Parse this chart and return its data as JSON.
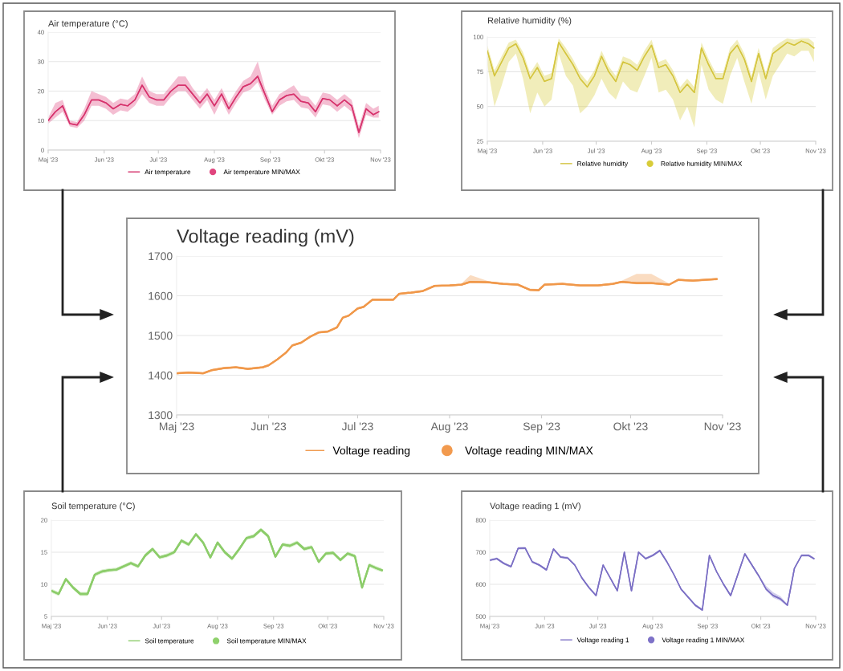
{
  "chart_data": [
    {
      "type": "line",
      "title": "Air temperature (°C)",
      "grid": "y",
      "legend": "bottom",
      "xlim": [
        "2023-05-01",
        "2023-11-01"
      ],
      "xticks": [
        {
          "value": "2023-05-01",
          "label": "Maj '23"
        },
        {
          "value": "2023-06-01",
          "label": "Jun '23"
        },
        {
          "value": "2023-07-01",
          "label": "Jul '23"
        },
        {
          "value": "2023-08-01",
          "label": "Aug '23"
        },
        {
          "value": "2023-09-01",
          "label": "Sep '23"
        },
        {
          "value": "2023-10-01",
          "label": "Okt '23"
        },
        {
          "value": "2023-11-01",
          "label": "Nov '23"
        }
      ],
      "ylim": [
        0,
        40
      ],
      "yticks": [
        0,
        10,
        20,
        30,
        40
      ],
      "x": [
        "2023-05-01",
        "2023-05-05",
        "2023-05-09",
        "2023-05-13",
        "2023-05-17",
        "2023-05-21",
        "2023-05-25",
        "2023-05-29",
        "2023-06-02",
        "2023-06-06",
        "2023-06-10",
        "2023-06-14",
        "2023-06-18",
        "2023-06-22",
        "2023-06-26",
        "2023-06-30",
        "2023-07-04",
        "2023-07-08",
        "2023-07-12",
        "2023-07-16",
        "2023-07-20",
        "2023-07-24",
        "2023-07-28",
        "2023-08-01",
        "2023-08-05",
        "2023-08-09",
        "2023-08-13",
        "2023-08-17",
        "2023-08-21",
        "2023-08-25",
        "2023-08-29",
        "2023-09-02",
        "2023-09-06",
        "2023-09-10",
        "2023-09-14",
        "2023-09-18",
        "2023-09-22",
        "2023-09-26",
        "2023-09-30",
        "2023-10-04",
        "2023-10-08",
        "2023-10-12",
        "2023-10-16",
        "2023-10-20",
        "2023-10-24",
        "2023-10-28",
        "2023-10-31"
      ],
      "series": [
        {
          "name": "Air temperature",
          "type": "line",
          "color": "#d6336c",
          "values": [
            10,
            13,
            15,
            9,
            8.5,
            12,
            17,
            17,
            16,
            14,
            15.5,
            15,
            17,
            22,
            18,
            17,
            17,
            20,
            22,
            22,
            19,
            16,
            19,
            15,
            19,
            14,
            18,
            21.5,
            22.5,
            25,
            19,
            13,
            17,
            18.5,
            19,
            16.5,
            16,
            13,
            17.5,
            17,
            15,
            17,
            15,
            6,
            14,
            12,
            13
          ]
        },
        {
          "name": "Air temperature MIN/MAX",
          "type": "line",
          "color": "#e0457e",
          "values": [
            10,
            13,
            15,
            9,
            8.5,
            12,
            17,
            17,
            16,
            14,
            15.5,
            15,
            17,
            22,
            18,
            17,
            17,
            20,
            22,
            22,
            19,
            16,
            19,
            15,
            19,
            14,
            18,
            21.5,
            22.5,
            25,
            19,
            13,
            17,
            18.5,
            19,
            16.5,
            16,
            13,
            17.5,
            17,
            15,
            17,
            15,
            6,
            14,
            12,
            13
          ],
          "upper": [
            11,
            16,
            17,
            10,
            9.5,
            14,
            20,
            19,
            18,
            16,
            17.5,
            17,
            19,
            25,
            20,
            19,
            19,
            22,
            25,
            25,
            21,
            18,
            21,
            17,
            21,
            16,
            20,
            23.5,
            25,
            30,
            21,
            15,
            19,
            20.5,
            22,
            18.5,
            18,
            15,
            19.5,
            19,
            17,
            19,
            17,
            8,
            16,
            14,
            15
          ],
          "lower": [
            9,
            11,
            13,
            8,
            7.5,
            10,
            15,
            15,
            14,
            12,
            13.5,
            13,
            15,
            19,
            16,
            15,
            15,
            18,
            20,
            20,
            17,
            14,
            17,
            12,
            17,
            12,
            16,
            19.5,
            20.5,
            23,
            17,
            12,
            15,
            16.5,
            17,
            14.5,
            14,
            11,
            15.5,
            15,
            13,
            15,
            13,
            4,
            12,
            11,
            11
          ]
        }
      ]
    },
    {
      "type": "line",
      "title": "Relative humidity (%)",
      "grid": "y",
      "legend": "bottom",
      "xlim": [
        "2023-05-01",
        "2023-11-01"
      ],
      "xticks": [
        {
          "value": "2023-05-01",
          "label": "Maj '23"
        },
        {
          "value": "2023-06-01",
          "label": "Jun '23"
        },
        {
          "value": "2023-07-01",
          "label": "Jul '23"
        },
        {
          "value": "2023-08-01",
          "label": "Aug '23"
        },
        {
          "value": "2023-09-01",
          "label": "Sep '23"
        },
        {
          "value": "2023-10-01",
          "label": "Okt '23"
        },
        {
          "value": "2023-11-01",
          "label": "Nov '23"
        }
      ],
      "ylim": [
        25,
        100
      ],
      "yticks": [
        25,
        50,
        75,
        100
      ],
      "x": [
        "2023-05-01",
        "2023-05-05",
        "2023-05-09",
        "2023-05-13",
        "2023-05-17",
        "2023-05-21",
        "2023-05-25",
        "2023-05-29",
        "2023-06-02",
        "2023-06-06",
        "2023-06-10",
        "2023-06-14",
        "2023-06-18",
        "2023-06-22",
        "2023-06-26",
        "2023-06-30",
        "2023-07-04",
        "2023-07-08",
        "2023-07-12",
        "2023-07-16",
        "2023-07-20",
        "2023-07-24",
        "2023-07-28",
        "2023-08-01",
        "2023-08-05",
        "2023-08-09",
        "2023-08-13",
        "2023-08-17",
        "2023-08-21",
        "2023-08-25",
        "2023-08-29",
        "2023-09-02",
        "2023-09-06",
        "2023-09-10",
        "2023-09-14",
        "2023-09-18",
        "2023-09-22",
        "2023-09-26",
        "2023-09-30",
        "2023-10-04",
        "2023-10-08",
        "2023-10-12",
        "2023-10-16",
        "2023-10-20",
        "2023-10-24",
        "2023-10-28",
        "2023-10-31"
      ],
      "series": [
        {
          "name": "Relative humidity",
          "type": "line",
          "color": "#d4c441",
          "values": [
            90,
            72,
            82,
            92,
            95,
            85,
            70,
            78,
            68,
            70,
            96,
            88,
            80,
            70,
            64,
            72,
            86,
            75,
            68,
            82,
            80,
            76,
            86,
            94,
            78,
            80,
            72,
            60,
            66,
            60,
            92,
            80,
            70,
            70,
            88,
            94,
            84,
            68,
            88,
            70,
            88,
            92,
            96,
            94,
            97,
            95,
            92
          ]
        },
        {
          "name": "Relative humidity MIN/MAX",
          "type": "line",
          "color": "#d8cc3a",
          "values": [
            90,
            72,
            82,
            92,
            95,
            85,
            70,
            78,
            68,
            70,
            96,
            88,
            80,
            70,
            64,
            72,
            86,
            75,
            68,
            82,
            80,
            76,
            86,
            94,
            78,
            80,
            72,
            60,
            66,
            60,
            92,
            80,
            70,
            70,
            88,
            94,
            84,
            68,
            88,
            70,
            88,
            92,
            96,
            94,
            97,
            95,
            92
          ],
          "upper": [
            94,
            76,
            86,
            96,
            98,
            89,
            74,
            82,
            72,
            74,
            99,
            92,
            84,
            74,
            68,
            76,
            90,
            79,
            72,
            86,
            84,
            80,
            90,
            98,
            82,
            84,
            76,
            64,
            70,
            64,
            96,
            84,
            74,
            74,
            92,
            98,
            88,
            72,
            92,
            74,
            92,
            96,
            99,
            98,
            99,
            99,
            96
          ],
          "lower": [
            80,
            50,
            65,
            82,
            88,
            70,
            45,
            60,
            50,
            55,
            88,
            72,
            65,
            45,
            50,
            58,
            70,
            60,
            55,
            68,
            62,
            60,
            72,
            85,
            60,
            62,
            55,
            40,
            50,
            35,
            80,
            62,
            55,
            52,
            72,
            85,
            68,
            52,
            75,
            55,
            72,
            80,
            88,
            86,
            90,
            90,
            82
          ]
        }
      ]
    },
    {
      "type": "line",
      "title": "Voltage reading (mV)",
      "grid": "y",
      "legend": "bottom",
      "xlim": [
        "2023-05-01",
        "2023-11-01"
      ],
      "xticks": [
        {
          "value": "2023-05-01",
          "label": "Maj '23"
        },
        {
          "value": "2023-06-01",
          "label": "Jun '23"
        },
        {
          "value": "2023-07-01",
          "label": "Jul '23"
        },
        {
          "value": "2023-08-01",
          "label": "Aug '23"
        },
        {
          "value": "2023-09-01",
          "label": "Sep '23"
        },
        {
          "value": "2023-10-01",
          "label": "Okt '23"
        },
        {
          "value": "2023-11-01",
          "label": "Nov '23"
        }
      ],
      "ylim": [
        1300,
        1700
      ],
      "yticks": [
        1300,
        1400,
        1500,
        1600,
        1700
      ],
      "x": [
        "2023-05-01",
        "2023-05-05",
        "2023-05-10",
        "2023-05-13",
        "2023-05-17",
        "2023-05-21",
        "2023-05-25",
        "2023-05-30",
        "2023-06-01",
        "2023-06-04",
        "2023-06-07",
        "2023-06-09",
        "2023-06-12",
        "2023-06-15",
        "2023-06-18",
        "2023-06-21",
        "2023-06-24",
        "2023-06-26",
        "2023-06-28",
        "2023-07-01",
        "2023-07-03",
        "2023-07-06",
        "2023-07-10",
        "2023-07-13",
        "2023-07-15",
        "2023-07-19",
        "2023-07-23",
        "2023-07-27",
        "2023-08-01",
        "2023-08-05",
        "2023-08-08",
        "2023-08-14",
        "2023-08-19",
        "2023-08-24",
        "2023-08-28",
        "2023-08-31",
        "2023-09-02",
        "2023-09-08",
        "2023-09-14",
        "2023-09-20",
        "2023-09-25",
        "2023-09-28",
        "2023-10-03",
        "2023-10-08",
        "2023-10-14",
        "2023-10-17",
        "2023-10-22",
        "2023-10-26",
        "2023-10-30"
      ],
      "series": [
        {
          "name": "Voltage reading",
          "type": "line",
          "color": "#f0984a",
          "values": [
            1405,
            1407,
            1405,
            1413,
            1418,
            1420,
            1416,
            1420,
            1425,
            1440,
            1458,
            1475,
            1482,
            1497,
            1508,
            1510,
            1520,
            1545,
            1550,
            1568,
            1572,
            1590,
            1590,
            1590,
            1605,
            1608,
            1612,
            1625,
            1626,
            1628,
            1635,
            1634,
            1630,
            1628,
            1615,
            1614,
            1628,
            1630,
            1626,
            1626,
            1630,
            1635,
            1632,
            1632,
            1628,
            1640,
            1638,
            1640,
            1642
          ]
        },
        {
          "name": "Voltage reading MIN/MAX",
          "type": "line",
          "color": "#f29a4e",
          "values": [
            1405,
            1407,
            1405,
            1413,
            1418,
            1420,
            1416,
            1420,
            1425,
            1440,
            1458,
            1475,
            1482,
            1497,
            1508,
            1510,
            1520,
            1545,
            1550,
            1568,
            1572,
            1590,
            1590,
            1590,
            1605,
            1608,
            1612,
            1625,
            1626,
            1628,
            1635,
            1634,
            1630,
            1628,
            1615,
            1614,
            1628,
            1630,
            1626,
            1626,
            1630,
            1635,
            1632,
            1632,
            1628,
            1640,
            1638,
            1640,
            1642
          ],
          "upper": [
            1408,
            1410,
            1408,
            1416,
            1421,
            1423,
            1419,
            1423,
            1428,
            1443,
            1461,
            1478,
            1485,
            1500,
            1511,
            1513,
            1523,
            1548,
            1553,
            1571,
            1575,
            1593,
            1593,
            1593,
            1608,
            1611,
            1615,
            1628,
            1629,
            1631,
            1652,
            1637,
            1633,
            1631,
            1618,
            1617,
            1631,
            1633,
            1629,
            1629,
            1633,
            1638,
            1655,
            1655,
            1631,
            1643,
            1641,
            1643,
            1645
          ],
          "lower": [
            1402,
            1404,
            1402,
            1410,
            1415,
            1417,
            1413,
            1417,
            1422,
            1437,
            1455,
            1472,
            1479,
            1494,
            1505,
            1507,
            1517,
            1542,
            1547,
            1565,
            1569,
            1587,
            1587,
            1587,
            1602,
            1605,
            1609,
            1622,
            1623,
            1625,
            1632,
            1631,
            1627,
            1625,
            1612,
            1611,
            1625,
            1627,
            1623,
            1623,
            1627,
            1632,
            1629,
            1629,
            1625,
            1637,
            1635,
            1637,
            1639
          ]
        }
      ]
    },
    {
      "type": "line",
      "title": "Soil temperature (°C)",
      "grid": "y",
      "legend": "bottom",
      "xlim": [
        "2023-05-01",
        "2023-11-01"
      ],
      "xticks": [
        {
          "value": "2023-05-01",
          "label": "Maj '23"
        },
        {
          "value": "2023-06-01",
          "label": "Jun '23"
        },
        {
          "value": "2023-07-01",
          "label": "Jul '23"
        },
        {
          "value": "2023-08-01",
          "label": "Aug '23"
        },
        {
          "value": "2023-09-01",
          "label": "Sep '23"
        },
        {
          "value": "2023-10-01",
          "label": "Okt '23"
        },
        {
          "value": "2023-11-01",
          "label": "Nov '23"
        }
      ],
      "ylim": [
        5,
        20
      ],
      "yticks": [
        5,
        10,
        15,
        20
      ],
      "x": [
        "2023-05-01",
        "2023-05-05",
        "2023-05-09",
        "2023-05-13",
        "2023-05-17",
        "2023-05-21",
        "2023-05-25",
        "2023-05-29",
        "2023-06-02",
        "2023-06-06",
        "2023-06-10",
        "2023-06-14",
        "2023-06-18",
        "2023-06-22",
        "2023-06-26",
        "2023-06-30",
        "2023-07-04",
        "2023-07-08",
        "2023-07-12",
        "2023-07-16",
        "2023-07-20",
        "2023-07-24",
        "2023-07-28",
        "2023-08-01",
        "2023-08-05",
        "2023-08-09",
        "2023-08-13",
        "2023-08-17",
        "2023-08-21",
        "2023-08-25",
        "2023-08-29",
        "2023-09-02",
        "2023-09-06",
        "2023-09-10",
        "2023-09-14",
        "2023-09-18",
        "2023-09-22",
        "2023-09-26",
        "2023-09-30",
        "2023-10-04",
        "2023-10-08",
        "2023-10-12",
        "2023-10-16",
        "2023-10-20",
        "2023-10-24",
        "2023-10-28",
        "2023-10-31"
      ],
      "series": [
        {
          "name": "Soil temperature",
          "type": "line",
          "color": "#8ccc6a",
          "values": [
            9,
            8.5,
            10.8,
            9.5,
            8.5,
            8.5,
            11.5,
            12,
            12.2,
            12.3,
            12.8,
            13.3,
            12.8,
            14.5,
            15.5,
            14.2,
            14.5,
            15,
            16.8,
            16.2,
            17.8,
            16.5,
            14.2,
            16.5,
            15,
            14,
            15.5,
            17.2,
            17.5,
            18.5,
            17.5,
            14.3,
            16.2,
            16,
            16.5,
            15.5,
            15.8,
            13.5,
            14.8,
            14.9,
            13.8,
            14.8,
            14.4,
            9.5,
            13,
            12.5,
            12.2
          ]
        },
        {
          "name": "Soil temperature MIN/MAX",
          "type": "line",
          "color": "#8fd16c",
          "values": [
            9,
            8.5,
            10.8,
            9.5,
            8.5,
            8.5,
            11.5,
            12,
            12.2,
            12.3,
            12.8,
            13.3,
            12.8,
            14.5,
            15.5,
            14.2,
            14.5,
            15,
            16.8,
            16.2,
            17.8,
            16.5,
            14.2,
            16.5,
            15,
            14,
            15.5,
            17.2,
            17.5,
            18.5,
            17.5,
            14.3,
            16.2,
            16,
            16.5,
            15.5,
            15.8,
            13.5,
            14.8,
            14.9,
            13.8,
            14.8,
            14.4,
            9.5,
            13,
            12.5,
            12.2
          ],
          "upper": [
            9.3,
            8.8,
            11.1,
            9.8,
            8.8,
            8.8,
            11.8,
            12.3,
            12.5,
            12.6,
            13.1,
            13.6,
            13.1,
            14.8,
            15.8,
            14.5,
            14.8,
            15.3,
            17.1,
            16.5,
            18.1,
            16.8,
            14.5,
            16.8,
            15.3,
            14.3,
            15.8,
            17.5,
            17.8,
            18.8,
            17.8,
            14.6,
            16.5,
            16.3,
            16.8,
            15.8,
            16.1,
            13.8,
            15.1,
            15.2,
            14.1,
            15.1,
            14.7,
            9.8,
            13.3,
            12.8,
            12.5
          ],
          "lower": [
            8.7,
            8.2,
            10.5,
            9.2,
            8.2,
            8.2,
            11.2,
            11.7,
            11.9,
            12,
            12.5,
            13,
            12.5,
            14.2,
            15.2,
            13.9,
            14.2,
            14.7,
            16.5,
            15.9,
            17.5,
            16.2,
            13.9,
            16.2,
            14.7,
            13.7,
            15.2,
            16.9,
            17.2,
            18.2,
            17.2,
            14,
            15.9,
            15.7,
            16.2,
            15.2,
            15.5,
            13.2,
            14.5,
            14.6,
            13.5,
            14.5,
            14.1,
            9.2,
            12.7,
            12.2,
            11.9
          ]
        }
      ]
    },
    {
      "type": "line",
      "title": "Voltage reading 1 (mV)",
      "grid": "y",
      "legend": "bottom",
      "xlim": [
        "2023-05-01",
        "2023-11-01"
      ],
      "xticks": [
        {
          "value": "2023-05-01",
          "label": "Maj '23"
        },
        {
          "value": "2023-06-01",
          "label": "Jun '23"
        },
        {
          "value": "2023-07-01",
          "label": "Jul '23"
        },
        {
          "value": "2023-08-01",
          "label": "Aug '23"
        },
        {
          "value": "2023-09-01",
          "label": "Sep '23"
        },
        {
          "value": "2023-10-01",
          "label": "Okt '23"
        },
        {
          "value": "2023-11-01",
          "label": "Nov '23"
        }
      ],
      "ylim": [
        500,
        800
      ],
      "yticks": [
        500,
        600,
        700,
        800
      ],
      "x": [
        "2023-05-01",
        "2023-05-05",
        "2023-05-09",
        "2023-05-13",
        "2023-05-17",
        "2023-05-21",
        "2023-05-25",
        "2023-05-29",
        "2023-06-02",
        "2023-06-06",
        "2023-06-10",
        "2023-06-14",
        "2023-06-18",
        "2023-06-22",
        "2023-06-26",
        "2023-06-30",
        "2023-07-04",
        "2023-07-08",
        "2023-07-12",
        "2023-07-16",
        "2023-07-20",
        "2023-07-24",
        "2023-07-28",
        "2023-08-01",
        "2023-08-05",
        "2023-08-09",
        "2023-08-13",
        "2023-08-17",
        "2023-08-21",
        "2023-08-25",
        "2023-08-29",
        "2023-09-02",
        "2023-09-06",
        "2023-09-10",
        "2023-09-14",
        "2023-09-18",
        "2023-09-22",
        "2023-09-26",
        "2023-09-30",
        "2023-10-04",
        "2023-10-08",
        "2023-10-12",
        "2023-10-16",
        "2023-10-20",
        "2023-10-24",
        "2023-10-28",
        "2023-10-31"
      ],
      "series": [
        {
          "name": "Voltage reading 1",
          "type": "line",
          "color": "#7b6fc4",
          "values": [
            675,
            680,
            665,
            655,
            712,
            713,
            670,
            660,
            645,
            710,
            685,
            682,
            660,
            620,
            590,
            565,
            660,
            620,
            580,
            700,
            580,
            700,
            680,
            690,
            705,
            670,
            630,
            585,
            560,
            535,
            520,
            690,
            640,
            600,
            565,
            630,
            695,
            660,
            625,
            585,
            565,
            555,
            535,
            650,
            690,
            690,
            680
          ]
        },
        {
          "name": "Voltage reading 1 MIN/MAX",
          "type": "line",
          "color": "#7e72c8",
          "values": [
            675,
            680,
            665,
            655,
            712,
            713,
            670,
            660,
            645,
            710,
            685,
            682,
            660,
            620,
            590,
            565,
            660,
            620,
            580,
            700,
            580,
            700,
            680,
            690,
            705,
            670,
            630,
            585,
            560,
            535,
            520,
            690,
            640,
            600,
            565,
            630,
            695,
            660,
            625,
            585,
            565,
            555,
            535,
            650,
            690,
            690,
            680
          ],
          "upper": [
            679,
            684,
            669,
            659,
            716,
            717,
            674,
            664,
            649,
            714,
            689,
            686,
            664,
            624,
            594,
            569,
            664,
            624,
            584,
            704,
            584,
            704,
            684,
            694,
            709,
            674,
            634,
            589,
            564,
            539,
            524,
            694,
            644,
            604,
            569,
            634,
            699,
            664,
            629,
            595,
            575,
            563,
            539,
            654,
            694,
            694,
            684
          ],
          "lower": [
            671,
            676,
            661,
            651,
            708,
            709,
            666,
            656,
            641,
            706,
            681,
            678,
            656,
            616,
            586,
            561,
            656,
            616,
            576,
            696,
            576,
            696,
            676,
            686,
            701,
            666,
            626,
            581,
            556,
            531,
            516,
            686,
            636,
            596,
            561,
            626,
            691,
            656,
            621,
            580,
            558,
            549,
            531,
            646,
            686,
            686,
            676
          ]
        }
      ]
    }
  ]
}
